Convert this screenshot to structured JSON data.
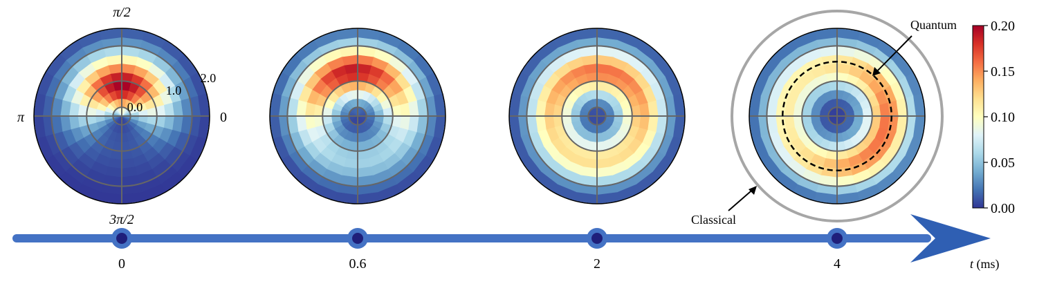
{
  "chart_data": {
    "type": "heatmap",
    "subtype": "polar",
    "description_axis": "time",
    "time_axis": {
      "label_var": "t",
      "label_unit": " (ms)",
      "ticks": [
        "0",
        "0.6",
        "2",
        "4"
      ],
      "color": "#4472c4"
    },
    "polar": {
      "radius_max": 2.5,
      "rings": [
        0.25,
        1.0,
        2.0
      ],
      "radial_tick_labels": [
        "0.0",
        "1.0",
        "2.0"
      ],
      "angle_tick_labels": [
        "0",
        "π/2",
        "π",
        "3π/2"
      ],
      "n_angular_sectors": 24,
      "n_radial_bins": 10
    },
    "panels": [
      {
        "time": "0",
        "peak_radius": 0.9,
        "peak_width": 0.9,
        "peak_angle_deg": 90,
        "anisotropy": 0.95,
        "max_value": 0.2
      },
      {
        "time": "0.6",
        "peak_radius": 1.3,
        "peak_width": 0.75,
        "peak_angle_deg": 95,
        "anisotropy": 0.7,
        "max_value": 0.19
      },
      {
        "time": "2",
        "peak_radius": 1.3,
        "peak_width": 0.7,
        "peak_angle_deg": 80,
        "anisotropy": 0.25,
        "max_value": 0.16
      },
      {
        "time": "4",
        "peak_radius": 1.45,
        "peak_width": 0.7,
        "peak_angle_deg": -20,
        "anisotropy": 0.3,
        "max_value": 0.16
      }
    ],
    "annotations": {
      "quantum_label": "Quantum",
      "classical_label": "Classical",
      "quantum_radius": 1.55,
      "classical_radius": 3.4
    },
    "colorbar": {
      "colormap": "RdYlBu_r",
      "min": 0.0,
      "max": 0.2,
      "tick_labels": [
        "0.00",
        "0.05",
        "0.10",
        "0.15",
        "0.20"
      ]
    }
  }
}
